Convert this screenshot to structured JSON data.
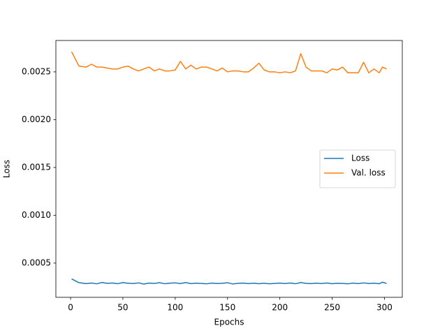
{
  "chart_data": {
    "type": "line",
    "x_label": "Epochs",
    "y_label": "Loss",
    "x": [
      1,
      8,
      15,
      20,
      25,
      30,
      35,
      40,
      45,
      50,
      55,
      60,
      65,
      70,
      75,
      80,
      85,
      90,
      95,
      100,
      105,
      110,
      115,
      120,
      125,
      130,
      135,
      140,
      145,
      150,
      155,
      160,
      165,
      170,
      175,
      180,
      185,
      190,
      195,
      200,
      205,
      210,
      215,
      220,
      225,
      230,
      235,
      240,
      245,
      250,
      255,
      260,
      265,
      270,
      275,
      280,
      285,
      290,
      295,
      298,
      302
    ],
    "series": [
      {
        "name": "Loss",
        "color": "#1f77b4",
        "values": [
          0.000335,
          0.000295,
          0.000285,
          0.000292,
          0.000283,
          0.000297,
          0.000288,
          0.000292,
          0.000284,
          0.000296,
          0.000289,
          0.000286,
          0.000293,
          0.000281,
          0.000291,
          0.000287,
          0.000295,
          0.000284,
          0.00029,
          0.000293,
          0.000286,
          0.000296,
          0.000285,
          0.00029,
          0.000287,
          0.000283,
          0.000291,
          0.000286,
          0.000289,
          0.000294,
          0.000282,
          0.000288,
          0.000291,
          0.000285,
          0.00029,
          0.000284,
          0.000289,
          0.000283,
          0.000287,
          0.000291,
          0.000286,
          0.000292,
          0.000284,
          0.000296,
          0.000288,
          0.000285,
          0.00029,
          0.000286,
          0.000292,
          0.000284,
          0.000289,
          0.000287,
          0.000283,
          0.000291,
          0.000285,
          0.000293,
          0.000286,
          0.00029,
          0.000284,
          0.0003,
          0.000287
        ]
      },
      {
        "name": "Val. loss",
        "color": "#ff7f0e",
        "values": [
          0.00271,
          0.00256,
          0.00255,
          0.00258,
          0.00255,
          0.00255,
          0.00254,
          0.00253,
          0.00253,
          0.00255,
          0.00256,
          0.00253,
          0.00251,
          0.00253,
          0.00255,
          0.00251,
          0.00253,
          0.00251,
          0.00251,
          0.00252,
          0.00261,
          0.00253,
          0.00257,
          0.00253,
          0.00255,
          0.00255,
          0.00253,
          0.00251,
          0.00254,
          0.0025,
          0.00251,
          0.00251,
          0.0025,
          0.0025,
          0.00254,
          0.00259,
          0.00252,
          0.0025,
          0.0025,
          0.00249,
          0.0025,
          0.00249,
          0.00251,
          0.00269,
          0.00255,
          0.00251,
          0.00251,
          0.00251,
          0.00249,
          0.00253,
          0.00252,
          0.00255,
          0.00249,
          0.00249,
          0.00249,
          0.0026,
          0.00249,
          0.00253,
          0.00249,
          0.00255,
          0.00253
        ]
      }
    ],
    "xlim": [
      -14.05,
      317.05
    ],
    "ylim": [
      0.000142,
      0.002828
    ],
    "xticks": [
      0,
      50,
      100,
      150,
      200,
      250,
      300
    ],
    "yticks": [
      0.0005,
      {
        "value": 0.001,
        "label": "0.0010"
      },
      0.0015,
      {
        "value": 0.002,
        "label": "0.0020"
      },
      0.0025
    ],
    "legend": "center right"
  }
}
